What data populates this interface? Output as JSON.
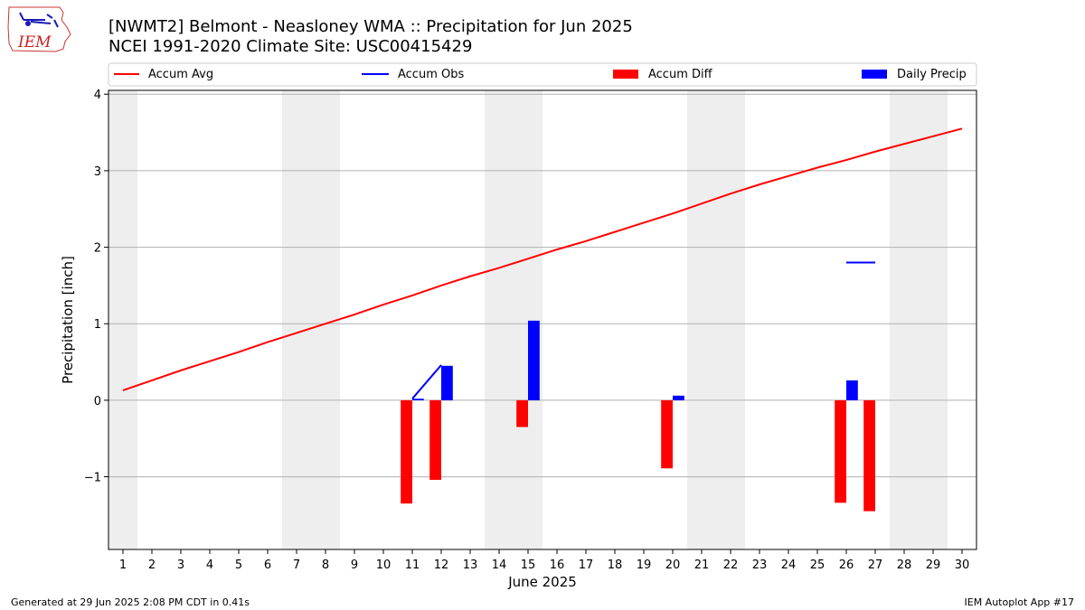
{
  "title": {
    "line1": "[NWMT2] Belmont - Neasloney WMA :: Precipitation for Jun 2025",
    "line2": "NCEI 1991-2020 Climate Site: USC00415429"
  },
  "logo": {
    "text": "IEM",
    "color": "#cc2222"
  },
  "legend": [
    {
      "label": "Accum Avg",
      "kind": "line",
      "color": "#ff0000"
    },
    {
      "label": "Accum Obs",
      "kind": "line",
      "color": "#0000ff"
    },
    {
      "label": "Accum Diff",
      "kind": "bar",
      "color": "#ff0000"
    },
    {
      "label": "Daily Precip",
      "kind": "bar",
      "color": "#0000ff"
    }
  ],
  "footer": {
    "left": "Generated at 29 Jun 2025 2:08 PM CDT in 0.41s",
    "right": "IEM Autoplot App #17"
  },
  "chart_data": {
    "type": "bar",
    "xlabel": "June 2025",
    "ylabel": "Precipitation [inch]",
    "xlim": [
      0.5,
      30.5
    ],
    "ylim": [
      -1.95,
      4.05
    ],
    "yticks": [
      {
        "value": -1,
        "label": "−1"
      },
      {
        "value": 0,
        "label": "0"
      },
      {
        "value": 1,
        "label": "1"
      },
      {
        "value": 2,
        "label": "2"
      },
      {
        "value": 3,
        "label": "3"
      },
      {
        "value": 4,
        "label": "4"
      }
    ],
    "xticks": [
      1,
      2,
      3,
      4,
      5,
      6,
      7,
      8,
      9,
      10,
      11,
      12,
      13,
      14,
      15,
      16,
      17,
      18,
      19,
      20,
      21,
      22,
      23,
      24,
      25,
      26,
      27,
      28,
      29,
      30
    ],
    "grid": "horizontal",
    "weekend_shading": [
      [
        0.5,
        1.5
      ],
      [
        6.5,
        8.5
      ],
      [
        13.5,
        15.5
      ],
      [
        20.5,
        22.5
      ],
      [
        27.5,
        29.5
      ]
    ],
    "shade_color": "#eeeeee",
    "series": [
      {
        "name": "Accum Avg",
        "kind": "line",
        "color": "#ff0000",
        "points": [
          [
            1,
            0.13
          ],
          [
            2,
            0.26
          ],
          [
            3,
            0.39
          ],
          [
            4,
            0.51
          ],
          [
            5,
            0.63
          ],
          [
            6,
            0.76
          ],
          [
            7,
            0.88
          ],
          [
            8,
            1.0
          ],
          [
            9,
            1.12
          ],
          [
            10,
            1.25
          ],
          [
            11,
            1.37
          ],
          [
            12,
            1.5
          ],
          [
            13,
            1.62
          ],
          [
            14,
            1.73
          ],
          [
            15,
            1.85
          ],
          [
            16,
            1.97
          ],
          [
            17,
            2.08
          ],
          [
            18,
            2.2
          ],
          [
            19,
            2.32
          ],
          [
            20,
            2.44
          ],
          [
            21,
            2.57
          ],
          [
            22,
            2.7
          ],
          [
            23,
            2.82
          ],
          [
            24,
            2.93
          ],
          [
            25,
            3.04
          ],
          [
            26,
            3.14
          ],
          [
            27,
            3.25
          ],
          [
            28,
            3.35
          ],
          [
            29,
            3.45
          ],
          [
            30,
            3.55
          ]
        ]
      },
      {
        "name": "Accum Obs",
        "kind": "line",
        "color": "#0000ff",
        "segments": [
          [
            [
              11,
              0.02
            ],
            [
              12,
              0.46
            ]
          ],
          [
            [
              26,
              1.8
            ],
            [
              27,
              1.8
            ]
          ]
        ]
      },
      {
        "name": "Accum Diff",
        "kind": "bar",
        "color": "#ff0000",
        "offset": -0.2,
        "width": 0.4,
        "bars": [
          {
            "x": 11,
            "value": -1.35
          },
          {
            "x": 12,
            "value": -1.04
          },
          {
            "x": 15,
            "value": -0.35
          },
          {
            "x": 20,
            "value": -0.89
          },
          {
            "x": 26,
            "value": -1.34
          },
          {
            "x": 27,
            "value": -1.45
          }
        ]
      },
      {
        "name": "Daily Precip",
        "kind": "bar",
        "color": "#0000ff",
        "offset": 0.2,
        "width": 0.4,
        "bars": [
          {
            "x": 11,
            "value": 0.02
          },
          {
            "x": 12,
            "value": 0.45
          },
          {
            "x": 15,
            "value": 1.04
          },
          {
            "x": 20,
            "value": 0.06
          },
          {
            "x": 26,
            "value": 0.26
          }
        ]
      }
    ]
  }
}
